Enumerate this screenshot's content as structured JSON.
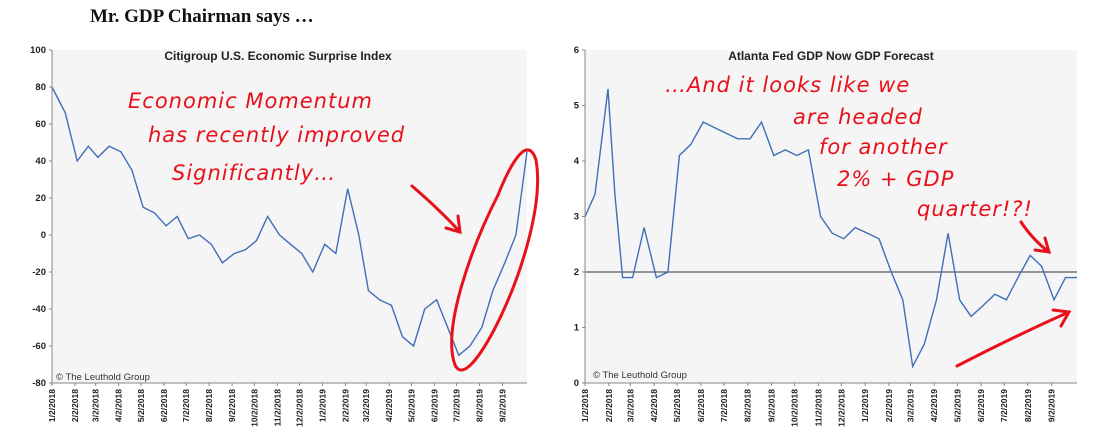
{
  "headline": "Mr. GDP Chairman says …",
  "colors": {
    "line": "#3e6fb8",
    "annotation": "#e8101a",
    "axis": "#888888",
    "plot_bg": "#f5f5f5"
  },
  "chart_data": [
    {
      "type": "line",
      "title": "Citigroup U.S. Economic Surprise Index",
      "credit": "© The Leuthold Group",
      "ylim": [
        -80,
        100
      ],
      "yticks": [
        "100",
        "80",
        "60",
        "40",
        "20",
        "0",
        "-20",
        "-40",
        "-60",
        "-80"
      ],
      "xticks": [
        "1/2/2018",
        "2/2/2018",
        "3/2/2018",
        "4/2/2018",
        "5/2/2018",
        "6/2/2018",
        "7/2/2018",
        "8/2/2018",
        "9/2/2018",
        "10/2/2018",
        "11/2/2018",
        "12/2/2018",
        "1/2/2019",
        "2/2/2019",
        "3/2/2019",
        "4/2/2019",
        "5/2/2019",
        "6/2/2019",
        "7/2/2019",
        "8/2/2019",
        "9/2/2019"
      ],
      "x": [
        "2018-01-02",
        "2018-01-20",
        "2018-02-05",
        "2018-02-20",
        "2018-03-05",
        "2018-03-20",
        "2018-04-05",
        "2018-04-20",
        "2018-05-05",
        "2018-05-20",
        "2018-06-05",
        "2018-06-20",
        "2018-07-05",
        "2018-07-20",
        "2018-08-05",
        "2018-08-20",
        "2018-09-05",
        "2018-09-20",
        "2018-10-05",
        "2018-10-20",
        "2018-11-05",
        "2018-11-20",
        "2018-12-05",
        "2018-12-20",
        "2019-01-05",
        "2019-01-20",
        "2019-02-05",
        "2019-02-20",
        "2019-03-05",
        "2019-03-20",
        "2019-04-05",
        "2019-04-20",
        "2019-05-05",
        "2019-05-20",
        "2019-06-05",
        "2019-06-20",
        "2019-07-05",
        "2019-07-20",
        "2019-08-05",
        "2019-08-20",
        "2019-09-05",
        "2019-09-20",
        "2019-10-05"
      ],
      "series": [
        {
          "values": [
            80,
            66,
            40,
            48,
            42,
            48,
            45,
            35,
            15,
            12,
            5,
            10,
            -2,
            0,
            -5,
            -15,
            -10,
            -8,
            -3,
            10,
            0,
            -5,
            -10,
            -20,
            -5,
            -10,
            25,
            0,
            -30,
            -35,
            -38,
            -55,
            -60,
            -40,
            -35,
            -50,
            -65,
            -60,
            -50,
            -30,
            -15,
            0,
            45
          ]
        }
      ],
      "annotation": [
        "Economic Momentum",
        "has recently improved",
        "Significantly…"
      ]
    },
    {
      "type": "line",
      "title": "Atlanta Fed GDP Now GDP Forecast",
      "credit": "© The Leuthold Group",
      "ylim": [
        0,
        6
      ],
      "yticks": [
        "6",
        "5",
        "4",
        "3",
        "2",
        "1",
        "0"
      ],
      "xticks": [
        "1/2/2018",
        "2/2/2018",
        "3/2/2018",
        "4/2/2018",
        "5/2/2018",
        "6/2/2018",
        "7/2/2018",
        "8/2/2018",
        "9/2/2018",
        "10/2/2018",
        "11/2/2018",
        "12/2/2018",
        "1/2/2019",
        "2/2/2019",
        "3/2/2019",
        "4/2/2019",
        "5/2/2019",
        "6/2/2019",
        "7/2/2019",
        "8/2/2019",
        "9/2/2019"
      ],
      "x": [
        "2018-01-02",
        "2018-01-15",
        "2018-02-01",
        "2018-02-10",
        "2018-02-20",
        "2018-03-05",
        "2018-03-20",
        "2018-04-05",
        "2018-04-20",
        "2018-05-05",
        "2018-05-20",
        "2018-06-05",
        "2018-06-20",
        "2018-07-05",
        "2018-07-20",
        "2018-08-05",
        "2018-08-20",
        "2018-09-05",
        "2018-09-20",
        "2018-10-05",
        "2018-10-20",
        "2018-11-05",
        "2018-11-20",
        "2018-12-05",
        "2018-12-20",
        "2019-01-05",
        "2019-01-20",
        "2019-02-05",
        "2019-02-20",
        "2019-03-05",
        "2019-03-20",
        "2019-04-05",
        "2019-04-20",
        "2019-05-05",
        "2019-05-20",
        "2019-06-05",
        "2019-06-20",
        "2019-07-05",
        "2019-07-20",
        "2019-08-05",
        "2019-08-20",
        "2019-09-05",
        "2019-09-20",
        "2019-10-05"
      ],
      "series": [
        {
          "values": [
            3.0,
            3.4,
            5.3,
            3.4,
            1.9,
            1.9,
            2.8,
            1.9,
            2.0,
            4.1,
            4.3,
            4.7,
            4.6,
            4.5,
            4.4,
            4.4,
            4.7,
            4.1,
            4.2,
            4.1,
            4.2,
            3.0,
            2.7,
            2.6,
            2.8,
            2.7,
            2.6,
            2.0,
            1.5,
            0.3,
            0.7,
            1.5,
            2.7,
            1.5,
            1.2,
            1.4,
            1.6,
            1.5,
            1.9,
            2.3,
            2.1,
            1.5,
            1.9,
            1.9
          ]
        }
      ],
      "hline": 2,
      "annotation": [
        "…And it looks like we",
        "are headed",
        "for another",
        "2% + GDP",
        "quarter!?!"
      ]
    }
  ]
}
